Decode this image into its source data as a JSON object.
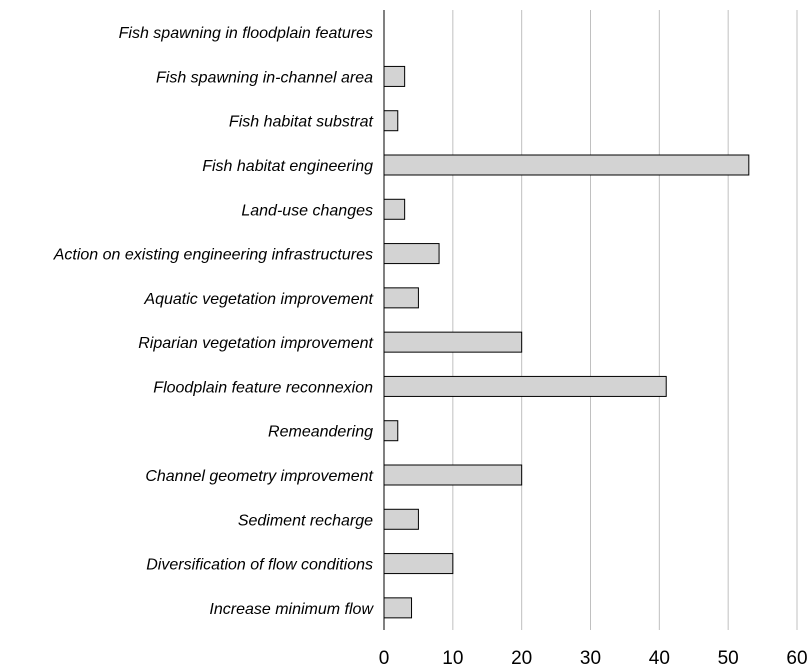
{
  "chart_data": {
    "type": "bar",
    "orientation": "horizontal",
    "categories": [
      "Fish  spawning  in floodplain features",
      "Fish spawning  in-channel area",
      "Fish habitat substrat",
      "Fish habitat engineering",
      "Land-use changes",
      "Action on existing engineering infrastructures",
      "Aquatic vegetation improvement",
      "Riparian vegetation improvement",
      "Floodplain feature reconnexion",
      "Remeandering",
      "Channel geometry improvement",
      "Sediment recharge",
      "Diversification of flow  conditions",
      "Increase minimum flow"
    ],
    "values": [
      0,
      3,
      2,
      53,
      3,
      8,
      5,
      20,
      41,
      2,
      20,
      5,
      10,
      4
    ],
    "xlim": [
      0,
      60
    ],
    "xticks": [
      "0",
      "10",
      "20",
      "30",
      "40",
      "50",
      "60"
    ],
    "grid": "vertical",
    "bar_color": "#d3d3d3",
    "title": "",
    "xlabel": "",
    "ylabel": ""
  }
}
